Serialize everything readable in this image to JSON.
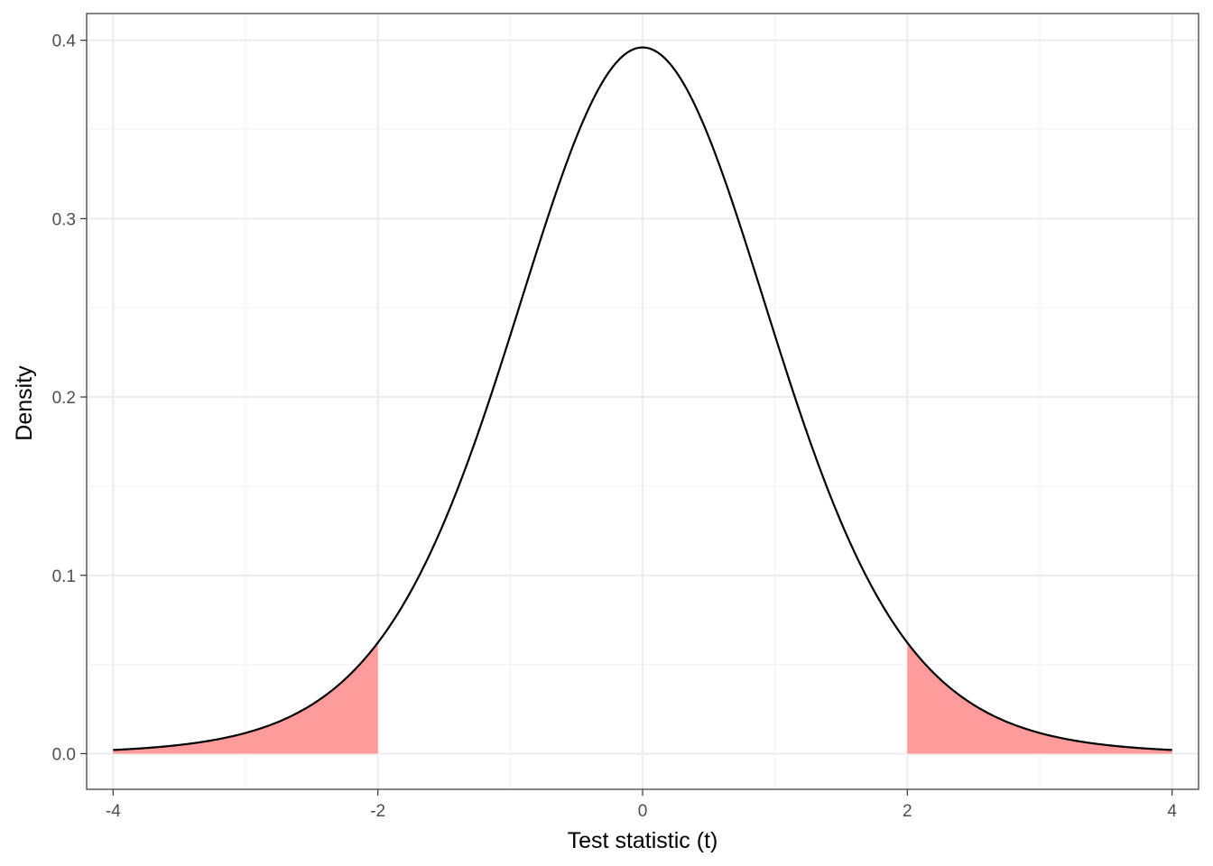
{
  "chart_data": {
    "type": "area",
    "title": "",
    "xlabel": "Test statistic (t)",
    "ylabel": "Density",
    "xlim": [
      -4.2,
      4.2
    ],
    "ylim": [
      -0.02,
      0.415
    ],
    "x_ticks": [
      -4,
      -2,
      0,
      2,
      4
    ],
    "x_tick_labels": [
      "-4",
      "-2",
      "0",
      "2",
      "4"
    ],
    "y_ticks": [
      0.0,
      0.1,
      0.2,
      0.3,
      0.4
    ],
    "y_tick_labels": [
      "0.0",
      "0.1",
      "0.2",
      "0.3",
      "0.4"
    ],
    "grid": true,
    "legend": "none",
    "curve": {
      "x": [
        -4.0,
        -3.75,
        -3.5,
        -3.25,
        -3.0,
        -2.75,
        -2.5,
        -2.25,
        -2.0,
        -1.75,
        -1.5,
        -1.25,
        -1.0,
        -0.75,
        -0.5,
        -0.25,
        0.0,
        0.25,
        0.5,
        0.75,
        1.0,
        1.25,
        1.5,
        1.75,
        2.0,
        2.25,
        2.5,
        2.75,
        3.0,
        3.25,
        3.5,
        3.75,
        4.0
      ],
      "y": [
        0.0009,
        0.0015,
        0.0024,
        0.0039,
        0.0062,
        0.0096,
        0.0148,
        0.0226,
        0.0567,
        0.088,
        0.1296,
        0.182,
        0.2358,
        0.294,
        0.348,
        0.383,
        0.396,
        0.383,
        0.348,
        0.294,
        0.2358,
        0.182,
        0.1296,
        0.088,
        0.0567,
        0.0226,
        0.0148,
        0.0096,
        0.0062,
        0.0039,
        0.0024,
        0.0015,
        0.0009
      ]
    },
    "rejection_regions": [
      {
        "from": -4.0,
        "to": -2.0
      },
      {
        "from": 2.0,
        "to": 4.0
      }
    ],
    "colors": {
      "curve": "#000000",
      "fill": "#ff9b9b",
      "grid_major": "#ebebeb",
      "grid_minor": "#f4f4f4",
      "panel_border": "#333333"
    }
  }
}
